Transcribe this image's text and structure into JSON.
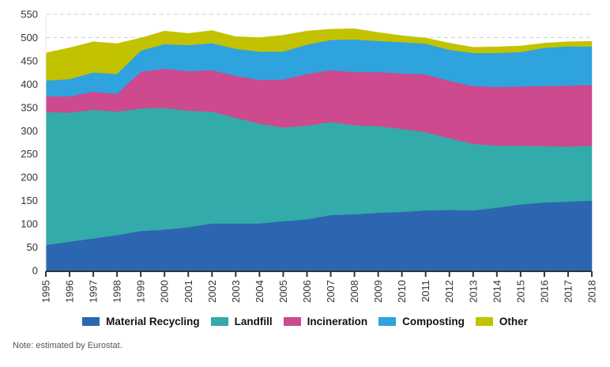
{
  "chart_data": {
    "type": "area",
    "stacked": true,
    "title": "",
    "xlabel": "",
    "ylabel": "",
    "ylim": [
      0,
      550
    ],
    "yticks": [
      0,
      50,
      100,
      150,
      200,
      250,
      300,
      350,
      400,
      450,
      500,
      550
    ],
    "grid": "horizontal dashed",
    "legend_position": "bottom",
    "x": [
      "1995",
      "1996",
      "1997",
      "1998",
      "1999",
      "2000",
      "2001",
      "2002",
      "2003",
      "2004",
      "2005",
      "2006",
      "2007",
      "2008",
      "2009",
      "2010",
      "2011",
      "2012",
      "2013",
      "2014",
      "2015",
      "2016",
      "2017",
      "2018"
    ],
    "series": [
      {
        "name": "Material Recycling",
        "color": "#2c66b0",
        "values": [
          55,
          62,
          69,
          76,
          85,
          88,
          93,
          101,
          101,
          101,
          106,
          110,
          119,
          121,
          124,
          126,
          129,
          130,
          129,
          135,
          142,
          146,
          148,
          150
        ]
      },
      {
        "name": "Landfill",
        "color": "#33abaa",
        "values": [
          285,
          277,
          276,
          265,
          263,
          261,
          250,
          240,
          227,
          214,
          201,
          201,
          200,
          191,
          186,
          178,
          168,
          154,
          143,
          133,
          126,
          121,
          118,
          118
        ]
      },
      {
        "name": "Incineration",
        "color": "#cc4a8d",
        "values": [
          34,
          35,
          39,
          38,
          79,
          84,
          85,
          89,
          90,
          94,
          103,
          111,
          111,
          114,
          116,
          119,
          124,
          123,
          124,
          126,
          127,
          129,
          131,
          130
        ]
      },
      {
        "name": "Composting",
        "color": "#2fa3dd",
        "values": [
          34,
          37,
          41,
          43,
          45,
          53,
          56,
          58,
          58,
          61,
          60,
          63,
          65,
          70,
          67,
          67,
          66,
          67,
          71,
          73,
          74,
          82,
          84,
          83
        ]
      },
      {
        "name": "Other",
        "color": "#c2c200",
        "values": [
          59,
          67,
          66,
          65,
          27,
          28,
          25,
          27,
          26,
          30,
          35,
          29,
          23,
          23,
          18,
          14,
          12,
          14,
          12,
          13,
          13,
          10,
          10,
          11
        ]
      }
    ]
  },
  "note": "Note: estimated by Eurostat."
}
